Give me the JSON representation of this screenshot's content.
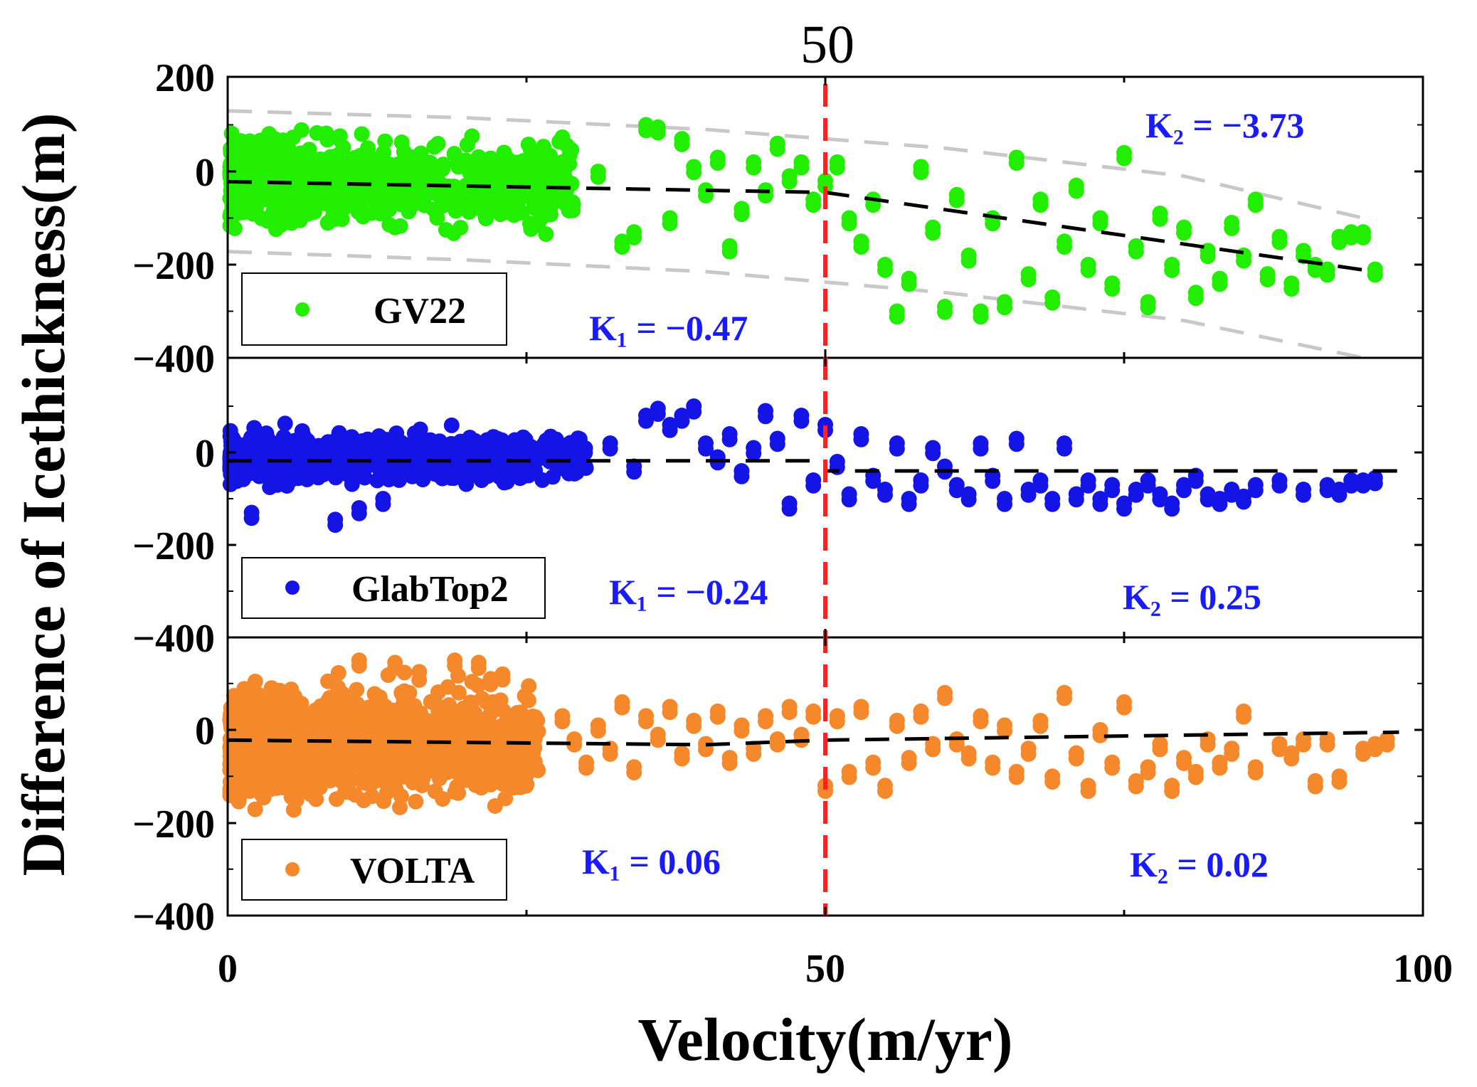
{
  "chart_data": {
    "type": "scatter",
    "top_label": "50",
    "xlabel": "Velocity(m/yr)",
    "ylabel": "Difference of Icethickness(m)",
    "xlim": [
      0,
      100
    ],
    "x_ticks": [
      "0",
      "50",
      "100"
    ],
    "threshold_x": 50,
    "colors": {
      "threshold": "#ff2020",
      "trend": "#000000",
      "envelope": "#c8c8c8",
      "k_text": "#1a1aff"
    },
    "panels": [
      {
        "name": "GV22",
        "color": "#22ee00",
        "ylim": [
          -400,
          200
        ],
        "y_ticks": [
          "200",
          "0",
          "−200",
          "−400"
        ],
        "trend": [
          [
            0,
            -22
          ],
          [
            30,
            -36
          ],
          [
            50,
            -45
          ],
          [
            96,
            -215
          ]
        ],
        "envelope_upper": [
          [
            0,
            130
          ],
          [
            20,
            115
          ],
          [
            40,
            90
          ],
          [
            60,
            50
          ],
          [
            80,
            -10
          ],
          [
            95,
            -100
          ]
        ],
        "envelope_lower": [
          [
            0,
            -172
          ],
          [
            20,
            -190
          ],
          [
            40,
            -215
          ],
          [
            60,
            -260
          ],
          [
            80,
            -320
          ],
          [
            95,
            -400
          ]
        ],
        "cloud": {
          "x_min": 0.2,
          "x_max": 29,
          "y_center": -25,
          "y_spread": 95,
          "count": 750
        },
        "points": [
          [
            35,
            100
          ],
          [
            36,
            95
          ],
          [
            38,
            70
          ],
          [
            39,
            10
          ],
          [
            40,
            -40
          ],
          [
            41,
            30
          ],
          [
            43,
            -80
          ],
          [
            45,
            -40
          ],
          [
            46,
            60
          ],
          [
            47,
            -10
          ],
          [
            48,
            20
          ],
          [
            49,
            -60
          ],
          [
            31,
            0
          ],
          [
            33,
            -150
          ],
          [
            34,
            -130
          ],
          [
            37,
            -100
          ],
          [
            42,
            -160
          ],
          [
            44,
            20
          ],
          [
            50,
            -20
          ],
          [
            51,
            20
          ],
          [
            52,
            -100
          ],
          [
            53,
            -150
          ],
          [
            54,
            -60
          ],
          [
            55,
            -200
          ],
          [
            56,
            -300
          ],
          [
            57,
            -230
          ],
          [
            58,
            10
          ],
          [
            59,
            -120
          ],
          [
            60,
            -290
          ],
          [
            61,
            -50
          ],
          [
            62,
            -180
          ],
          [
            63,
            -300
          ],
          [
            64,
            -100
          ],
          [
            65,
            -280
          ],
          [
            66,
            30
          ],
          [
            67,
            -220
          ],
          [
            68,
            -60
          ],
          [
            69,
            -270
          ],
          [
            70,
            -150
          ],
          [
            71,
            -30
          ],
          [
            72,
            -200
          ],
          [
            73,
            -100
          ],
          [
            74,
            -240
          ],
          [
            75,
            40
          ],
          [
            76,
            -160
          ],
          [
            77,
            -280
          ],
          [
            78,
            -90
          ],
          [
            79,
            -200
          ],
          [
            80,
            -120
          ],
          [
            81,
            -260
          ],
          [
            82,
            -170
          ],
          [
            83,
            -230
          ],
          [
            84,
            -110
          ],
          [
            85,
            -180
          ],
          [
            86,
            -60
          ],
          [
            87,
            -220
          ],
          [
            88,
            -140
          ],
          [
            89,
            -240
          ],
          [
            90,
            -170
          ],
          [
            91,
            -200
          ],
          [
            92,
            -210
          ],
          [
            93,
            -140
          ],
          [
            94,
            -130
          ],
          [
            95,
            -130
          ],
          [
            96,
            -210
          ]
        ],
        "legend_label": "GV22",
        "k1": "K₁ = −0.47",
        "k2": "K₂ = −3.73"
      },
      {
        "name": "GlabTop2",
        "color": "#1414e6",
        "ylim": [
          -400,
          200
        ],
        "y_ticks": [
          "0",
          "−200",
          "−400"
        ],
        "trend": [
          [
            0,
            -18
          ],
          [
            50,
            -18
          ],
          [
            50,
            -40
          ],
          [
            98,
            -40
          ]
        ],
        "cloud": {
          "x_min": 0.2,
          "x_max": 30,
          "y_center": -10,
          "y_spread": 55,
          "count": 650
        },
        "points": [
          [
            2,
            -130
          ],
          [
            9,
            -145
          ],
          [
            11,
            -120
          ],
          [
            13,
            -100
          ],
          [
            32,
            20
          ],
          [
            34,
            -30
          ],
          [
            35,
            80
          ],
          [
            36,
            95
          ],
          [
            37,
            60
          ],
          [
            38,
            80
          ],
          [
            39,
            100
          ],
          [
            40,
            20
          ],
          [
            41,
            -10
          ],
          [
            42,
            40
          ],
          [
            43,
            -40
          ],
          [
            44,
            10
          ],
          [
            45,
            90
          ],
          [
            46,
            30
          ],
          [
            47,
            -110
          ],
          [
            48,
            80
          ],
          [
            49,
            -60
          ],
          [
            50,
            60
          ],
          [
            51,
            -20
          ],
          [
            52,
            -90
          ],
          [
            53,
            40
          ],
          [
            54,
            -50
          ],
          [
            55,
            -80
          ],
          [
            56,
            20
          ],
          [
            57,
            -100
          ],
          [
            58,
            -60
          ],
          [
            59,
            10
          ],
          [
            60,
            -30
          ],
          [
            61,
            -70
          ],
          [
            62,
            -90
          ],
          [
            63,
            20
          ],
          [
            64,
            -50
          ],
          [
            65,
            -100
          ],
          [
            66,
            30
          ],
          [
            67,
            -80
          ],
          [
            68,
            -60
          ],
          [
            69,
            -100
          ],
          [
            70,
            20
          ],
          [
            71,
            -90
          ],
          [
            72,
            -60
          ],
          [
            73,
            -100
          ],
          [
            74,
            -70
          ],
          [
            75,
            -110
          ],
          [
            76,
            -80
          ],
          [
            77,
            -60
          ],
          [
            78,
            -90
          ],
          [
            79,
            -110
          ],
          [
            80,
            -70
          ],
          [
            81,
            -50
          ],
          [
            82,
            -90
          ],
          [
            83,
            -100
          ],
          [
            84,
            -80
          ],
          [
            85,
            -95
          ],
          [
            86,
            -70
          ],
          [
            88,
            -60
          ],
          [
            90,
            -80
          ],
          [
            92,
            -70
          ],
          [
            93,
            -80
          ],
          [
            94,
            -60
          ],
          [
            95,
            -60
          ],
          [
            96,
            -55
          ]
        ],
        "legend_label": "GlabTop2",
        "k1": "K₁ = −0.24",
        "k2": "K₂ = 0.25"
      },
      {
        "name": "VOLTA",
        "color": "#f5882a",
        "ylim": [
          -400,
          200
        ],
        "y_ticks": [
          "0",
          "−200",
          "−400"
        ],
        "trend": [
          [
            0,
            -22
          ],
          [
            40,
            -32
          ],
          [
            50,
            -22
          ],
          [
            98,
            -5
          ]
        ],
        "cloud": {
          "x_min": 0.2,
          "x_max": 26,
          "y_center": -30,
          "y_spread": 120,
          "count": 1200
        },
        "points": [
          [
            11,
            150
          ],
          [
            14,
            145
          ],
          [
            19,
            150
          ],
          [
            21,
            145
          ],
          [
            22,
            110
          ],
          [
            23,
            120
          ],
          [
            28,
            30
          ],
          [
            29,
            -20
          ],
          [
            30,
            -70
          ],
          [
            31,
            10
          ],
          [
            32,
            -40
          ],
          [
            33,
            60
          ],
          [
            34,
            -80
          ],
          [
            35,
            30
          ],
          [
            36,
            -10
          ],
          [
            37,
            50
          ],
          [
            38,
            -50
          ],
          [
            39,
            20
          ],
          [
            40,
            -30
          ],
          [
            41,
            40
          ],
          [
            42,
            -60
          ],
          [
            43,
            10
          ],
          [
            44,
            -40
          ],
          [
            45,
            30
          ],
          [
            46,
            -20
          ],
          [
            47,
            50
          ],
          [
            48,
            -10
          ],
          [
            49,
            40
          ],
          [
            50,
            -120
          ],
          [
            51,
            30
          ],
          [
            52,
            -90
          ],
          [
            53,
            50
          ],
          [
            54,
            -70
          ],
          [
            55,
            -120
          ],
          [
            56,
            20
          ],
          [
            57,
            -60
          ],
          [
            58,
            40
          ],
          [
            59,
            -30
          ],
          [
            60,
            80
          ],
          [
            61,
            -20
          ],
          [
            62,
            -50
          ],
          [
            63,
            30
          ],
          [
            64,
            -70
          ],
          [
            65,
            10
          ],
          [
            66,
            -90
          ],
          [
            67,
            -40
          ],
          [
            68,
            20
          ],
          [
            69,
            -100
          ],
          [
            70,
            80
          ],
          [
            71,
            -50
          ],
          [
            72,
            -120
          ],
          [
            73,
            0
          ],
          [
            74,
            -70
          ],
          [
            75,
            60
          ],
          [
            76,
            -110
          ],
          [
            77,
            -80
          ],
          [
            78,
            -30
          ],
          [
            79,
            -120
          ],
          [
            80,
            -60
          ],
          [
            81,
            -90
          ],
          [
            82,
            -20
          ],
          [
            83,
            -70
          ],
          [
            84,
            -40
          ],
          [
            85,
            40
          ],
          [
            86,
            -80
          ],
          [
            88,
            -30
          ],
          [
            89,
            -50
          ],
          [
            90,
            -20
          ],
          [
            91,
            -110
          ],
          [
            92,
            -20
          ],
          [
            93,
            -100
          ],
          [
            95,
            -40
          ],
          [
            96,
            -30
          ],
          [
            97,
            -20
          ]
        ],
        "legend_label": "VOLTA",
        "k1": "K₁ = 0.06",
        "k2": "K₂ = 0.02"
      }
    ]
  }
}
